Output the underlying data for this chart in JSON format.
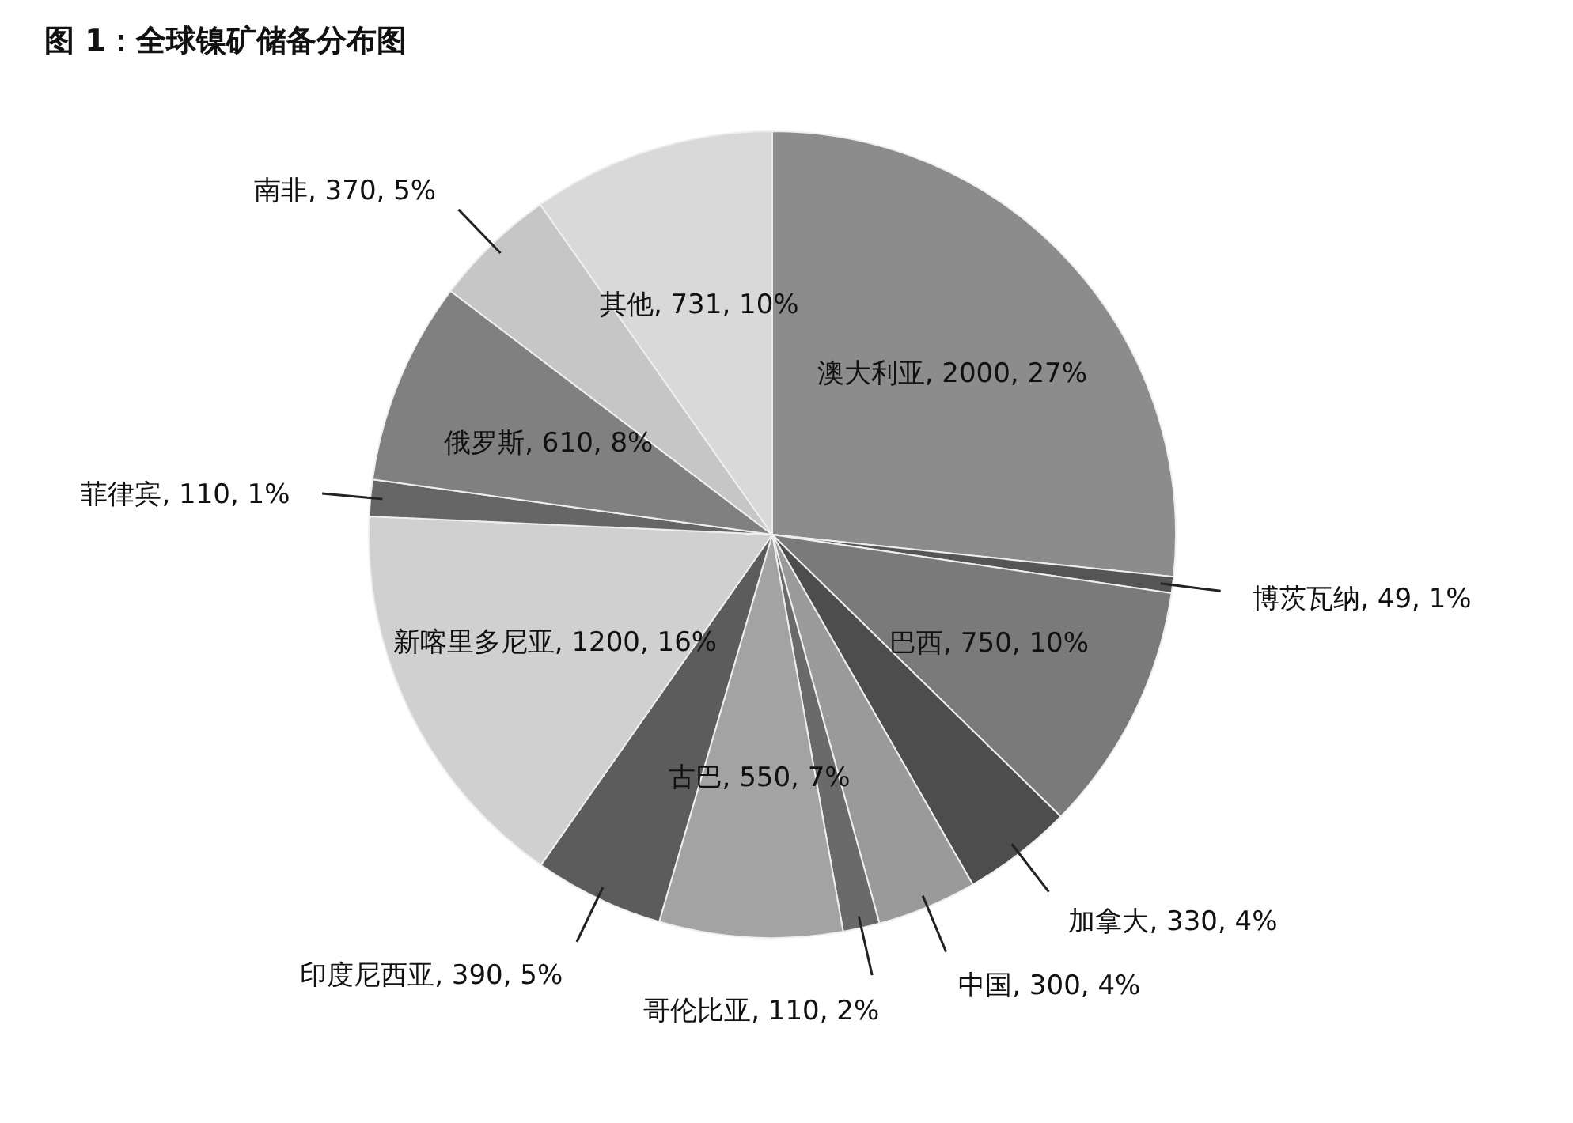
{
  "chart_data": {
    "type": "pie",
    "title": "图 1：全球镍矿储备分布图",
    "categories": [
      "澳大利亚",
      "博茨瓦纳",
      "巴西",
      "加拿大",
      "中国",
      "哥伦比亚",
      "古巴",
      "印度尼西亚",
      "新喀里多尼亚",
      "菲律宾",
      "俄罗斯",
      "南非",
      "其他"
    ],
    "values": [
      2000,
      49,
      750,
      330,
      300,
      110,
      550,
      390,
      1200,
      110,
      610,
      370,
      731
    ],
    "value_labels": [
      "2000, 27%",
      "49, 1%",
      "750, 10%",
      "330, 4%",
      "300, 4%",
      "110, 2%",
      "550, 7%",
      "390, 5%",
      "1200, 16%",
      "110, 1%",
      "610, 8%",
      "370, 5%",
      "731, 10%"
    ],
    "colors": [
      "#8c8c8c",
      "#555555",
      "#7a7a7a",
      "#4d4d4d",
      "#9a9a9a",
      "#6a6a6a",
      "#a3a3a3",
      "#5c5c5c",
      "#d0d0d0",
      "#666666",
      "#808080",
      "#c6c6c6",
      "#d9d9d9"
    ]
  }
}
